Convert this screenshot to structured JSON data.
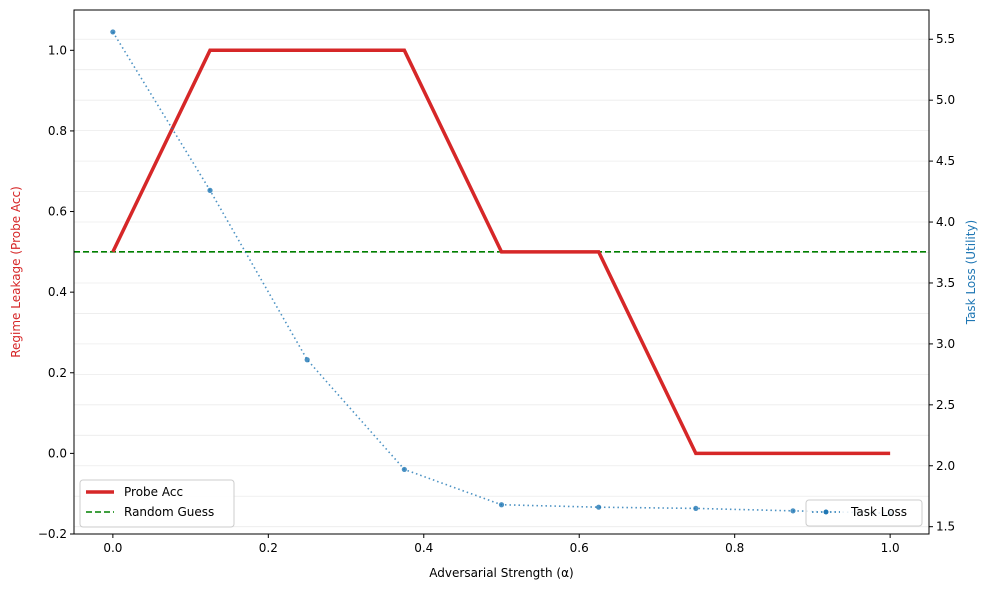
{
  "chart_data": {
    "type": "line",
    "x": [
      0.0,
      0.125,
      0.25,
      0.375,
      0.5,
      0.625,
      0.75,
      0.875,
      1.0
    ],
    "xlabel": "Adversarial Strength (α)",
    "xlim": [
      -0.05,
      1.05
    ],
    "xticks": [
      0.0,
      0.2,
      0.4,
      0.6,
      0.8,
      1.0
    ],
    "xtick_labels": [
      "0.0",
      "0.2",
      "0.4",
      "0.6",
      "0.8",
      "1.0"
    ],
    "y_left": {
      "label": "Regime Leakage (Probe Acc)",
      "color": "#d62728",
      "ylim": [
        -0.2,
        1.1
      ],
      "ticks": [
        -0.2,
        0.0,
        0.2,
        0.4,
        0.6,
        0.8,
        1.0
      ],
      "tick_labels": [
        "−0.2",
        "0.0",
        "0.2",
        "0.4",
        "0.6",
        "0.8",
        "1.0"
      ]
    },
    "y_right": {
      "label": "Task Loss (Utility)",
      "color": "#1f77b4",
      "ylim": [
        1.44,
        5.74
      ],
      "ticks": [
        1.5,
        2.0,
        2.5,
        3.0,
        3.5,
        4.0,
        4.5,
        5.0,
        5.5
      ],
      "tick_labels": [
        "1.5",
        "2.0",
        "2.5",
        "3.0",
        "3.5",
        "4.0",
        "4.5",
        "5.0",
        "5.5"
      ]
    },
    "series": [
      {
        "name": "Probe Acc",
        "axis": "left",
        "color": "#d62728",
        "style": "solid",
        "values": [
          0.5,
          1.0,
          1.0,
          1.0,
          0.5,
          0.5,
          0.0,
          0.0,
          0.0
        ]
      },
      {
        "name": "Task Loss",
        "axis": "right",
        "color": "#1f77b4",
        "style": "dotted",
        "marker": "circle",
        "values": [
          5.56,
          4.26,
          2.87,
          1.97,
          1.68,
          1.66,
          1.65,
          1.63,
          1.61
        ]
      }
    ],
    "reference_lines": [
      {
        "name": "Random Guess",
        "axis": "left",
        "y": 0.5,
        "color": "#008000",
        "style": "dashed"
      }
    ],
    "legends": [
      {
        "placement": "lower-left",
        "entries": [
          "Probe Acc",
          "Random Guess"
        ]
      },
      {
        "placement": "lower-right",
        "entries": [
          "Task Loss"
        ]
      }
    ],
    "grid": "horizontal"
  }
}
